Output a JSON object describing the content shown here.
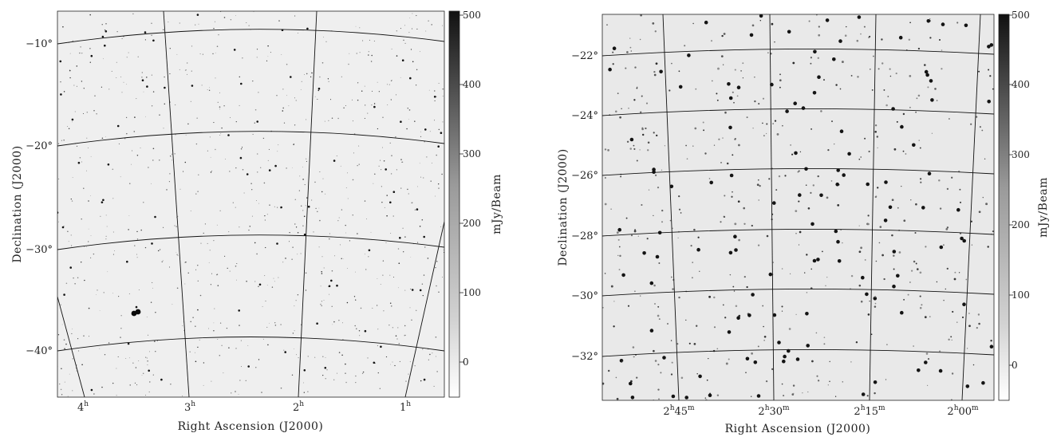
{
  "chart_data": [
    {
      "type": "heatmap",
      "panel": "left",
      "xlabel": "Right Ascension (J2000)",
      "ylabel": "Declination (J2000)",
      "x_ticks": [
        {
          "label": "4",
          "sup": "h"
        },
        {
          "label": "3",
          "sup": "h"
        },
        {
          "label": "2",
          "sup": "h"
        },
        {
          "label": "1",
          "sup": "h"
        }
      ],
      "y_ticks": [
        "−10°",
        "−20°",
        "−30°",
        "−40°"
      ],
      "colorbar": {
        "label": "mJy/Beam",
        "range": [
          -50,
          500
        ],
        "ticks": [
          "500",
          "400",
          "300",
          "200",
          "100",
          "0"
        ]
      },
      "bright_source": {
        "ra_h": 3.5,
        "dec_deg": -36.0,
        "note": "double source"
      }
    },
    {
      "type": "heatmap",
      "panel": "right",
      "xlabel": "Right Ascension (J2000)",
      "ylabel": "Declination (J2000)",
      "x_ticks": [
        {
          "label": "2",
          "sup1": "h",
          "mid": "45",
          "sup2": "m"
        },
        {
          "label": "2",
          "sup1": "h",
          "mid": "30",
          "sup2": "m"
        },
        {
          "label": "2",
          "sup1": "h",
          "mid": "15",
          "sup2": "m"
        },
        {
          "label": "2",
          "sup1": "h",
          "mid": "00",
          "sup2": "m"
        }
      ],
      "y_ticks": [
        "−22°",
        "−24°",
        "−26°",
        "−28°",
        "−30°",
        "−32°"
      ],
      "colorbar": {
        "label": "mJy/Beam",
        "range": [
          -50,
          500
        ],
        "ticks": [
          "500",
          "400",
          "300",
          "200",
          "100",
          "0"
        ]
      }
    }
  ]
}
